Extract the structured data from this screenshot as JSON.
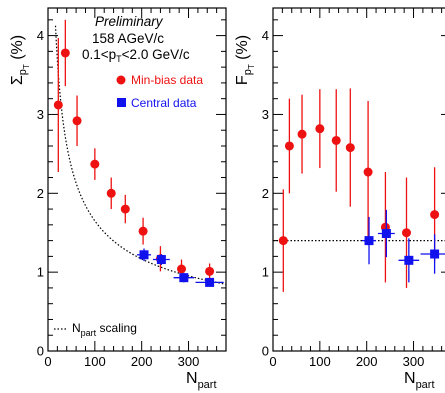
{
  "chart_data": [
    {
      "type": "scatter",
      "panel": "left",
      "header": {
        "line1": "Preliminary",
        "line2": "158 AGeV/c",
        "line3_pre": "0.1<p",
        "line3_sub": "T",
        "line3_post": "<2.0 GeV/c"
      },
      "ylabel": {
        "main": "Σ",
        "sub": "p",
        "subsub": "T",
        "unit": "(%)"
      },
      "xlabel": {
        "main": "N",
        "sub": "part"
      },
      "xlim": [
        0,
        380
      ],
      "ylim": [
        0,
        4.35
      ],
      "xticks": [
        0,
        100,
        200,
        300
      ],
      "yticks": [
        0,
        1,
        2,
        3,
        4
      ],
      "grid": false,
      "legend_position": "top-right",
      "series": [
        {
          "name": "Min-bias data",
          "color": "#ee1111",
          "marker": "circle",
          "points": [
            {
              "x": 22,
              "y": 3.12,
              "yerr": 0.85
            },
            {
              "x": 37,
              "y": 3.78,
              "yerr": 0.42
            },
            {
              "x": 62,
              "y": 2.92,
              "yerr": 0.32
            },
            {
              "x": 100,
              "y": 2.37,
              "yerr": 0.2
            },
            {
              "x": 135,
              "y": 2.0,
              "yerr": 0.2
            },
            {
              "x": 165,
              "y": 1.8,
              "yerr": 0.18
            },
            {
              "x": 203,
              "y": 1.52,
              "yerr": 0.17
            },
            {
              "x": 240,
              "y": 1.17,
              "yerr": 0.16
            },
            {
              "x": 285,
              "y": 1.04,
              "yerr": 0.12
            },
            {
              "x": 345,
              "y": 1.01,
              "yerr": 0.1
            }
          ]
        },
        {
          "name": "Central data",
          "color": "#1111ee",
          "marker": "square",
          "points": [
            {
              "x": 205,
              "y": 1.22,
              "yerr": 0.08,
              "xerr": 15
            },
            {
              "x": 242,
              "y": 1.16,
              "yerr": 0.07,
              "xerr": 18
            },
            {
              "x": 290,
              "y": 0.93,
              "yerr": 0.06,
              "xerr": 22
            },
            {
              "x": 345,
              "y": 0.87,
              "yerr": 0.05,
              "xerr": 30
            }
          ]
        },
        {
          "name": "N_part scaling",
          "legend_main": "N",
          "legend_sub": "part",
          "legend_post": " scaling",
          "color": "#000000",
          "style": "dotted",
          "curve_coeff": 16.5
        }
      ]
    },
    {
      "type": "scatter",
      "panel": "right",
      "ylabel": {
        "main": "F",
        "sub": "p",
        "subsub": "T",
        "unit": "(%)"
      },
      "xlabel": {
        "main": "N",
        "sub": "part"
      },
      "xlim": [
        0,
        380
      ],
      "ylim": [
        0,
        4.35
      ],
      "xticks": [
        0,
        100,
        200,
        300
      ],
      "yticks": [
        0,
        1,
        2,
        3,
        4
      ],
      "grid": false,
      "reference_line": 1.4,
      "series": [
        {
          "name": "Min-bias data",
          "color": "#ee1111",
          "marker": "circle",
          "points": [
            {
              "x": 22,
              "y": 1.4,
              "yerr": 0.65
            },
            {
              "x": 35,
              "y": 2.6,
              "yerr": 0.6
            },
            {
              "x": 62,
              "y": 2.75,
              "yerr": 0.5
            },
            {
              "x": 100,
              "y": 2.82,
              "yerr": 0.5
            },
            {
              "x": 135,
              "y": 2.67,
              "yerr": 0.65
            },
            {
              "x": 165,
              "y": 2.58,
              "yerr": 0.75
            },
            {
              "x": 203,
              "y": 2.27,
              "yerr": 0.9
            },
            {
              "x": 240,
              "y": 1.57,
              "yerr": 0.7
            },
            {
              "x": 285,
              "y": 1.5,
              "yerr": 0.7
            },
            {
              "x": 345,
              "y": 1.73,
              "yerr": 0.6
            }
          ]
        },
        {
          "name": "Central data",
          "color": "#1111ee",
          "marker": "square",
          "points": [
            {
              "x": 205,
              "y": 1.4,
              "yerr": 0.3,
              "xerr": 15
            },
            {
              "x": 242,
              "y": 1.49,
              "yerr": 0.3,
              "xerr": 18
            },
            {
              "x": 290,
              "y": 1.15,
              "yerr": 0.28,
              "xerr": 22
            },
            {
              "x": 345,
              "y": 1.23,
              "yerr": 0.25,
              "xerr": 30
            }
          ]
        }
      ]
    }
  ]
}
